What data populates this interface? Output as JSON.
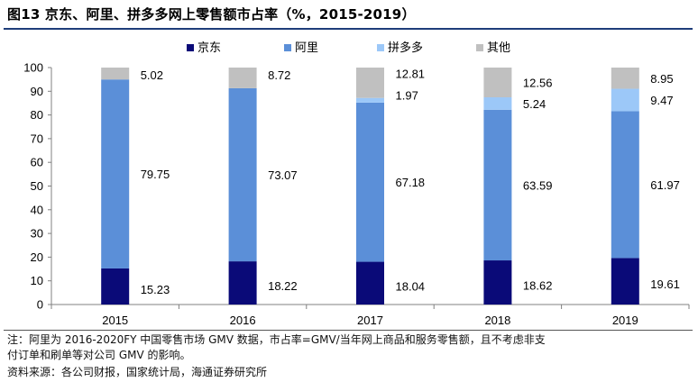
{
  "figure": {
    "title": "图13 京东、阿里、拼多多网上零售额市占率（%，2015-2019）",
    "note_line1": "注：阿里为 2016-2020FY 中国零售市场 GMV 数据，市占率=GMV/当年网上商品和服务零售额，且不考虑非支",
    "note_line2": "付订单和刷单等对公司 GMV 的影响。",
    "source": "资料来源：各公司财报，国家统计局，海通证券研究所"
  },
  "colors": {
    "jd": "#0a0a78",
    "ali": "#5b8fd8",
    "pdd": "#9cc8f8",
    "other": "#c0c0c0",
    "title_rule": "#1f3d7a"
  },
  "chart_data": {
    "type": "bar",
    "stacked": true,
    "categories": [
      "2015",
      "2016",
      "2017",
      "2018",
      "2019"
    ],
    "series": [
      {
        "name": "京东",
        "values": [
          15.23,
          18.22,
          18.04,
          18.62,
          19.61
        ],
        "labels": [
          "15.23",
          "18.22",
          "18.04",
          "18.62",
          "19.61"
        ]
      },
      {
        "name": "阿里",
        "values": [
          79.75,
          73.07,
          67.18,
          63.59,
          61.97
        ],
        "labels": [
          "79.75",
          "73.07",
          "67.18",
          "63.59",
          "61.97"
        ]
      },
      {
        "name": "拼多多",
        "values": [
          0,
          0,
          1.97,
          5.24,
          9.47
        ],
        "labels": [
          "",
          "",
          "1.97",
          "5.24",
          "9.47"
        ]
      },
      {
        "name": "其他",
        "values": [
          5.02,
          8.72,
          12.81,
          12.56,
          8.95
        ],
        "labels": [
          "5.02",
          "8.72",
          "12.81",
          "12.56",
          "8.95"
        ]
      }
    ],
    "ylim": [
      0,
      100
    ],
    "yticks": [
      "0",
      "10",
      "20",
      "30",
      "40",
      "50",
      "60",
      "70",
      "80",
      "90",
      "100"
    ],
    "xlabel": "",
    "ylabel": "",
    "legend_position": "top",
    "grid": false
  }
}
